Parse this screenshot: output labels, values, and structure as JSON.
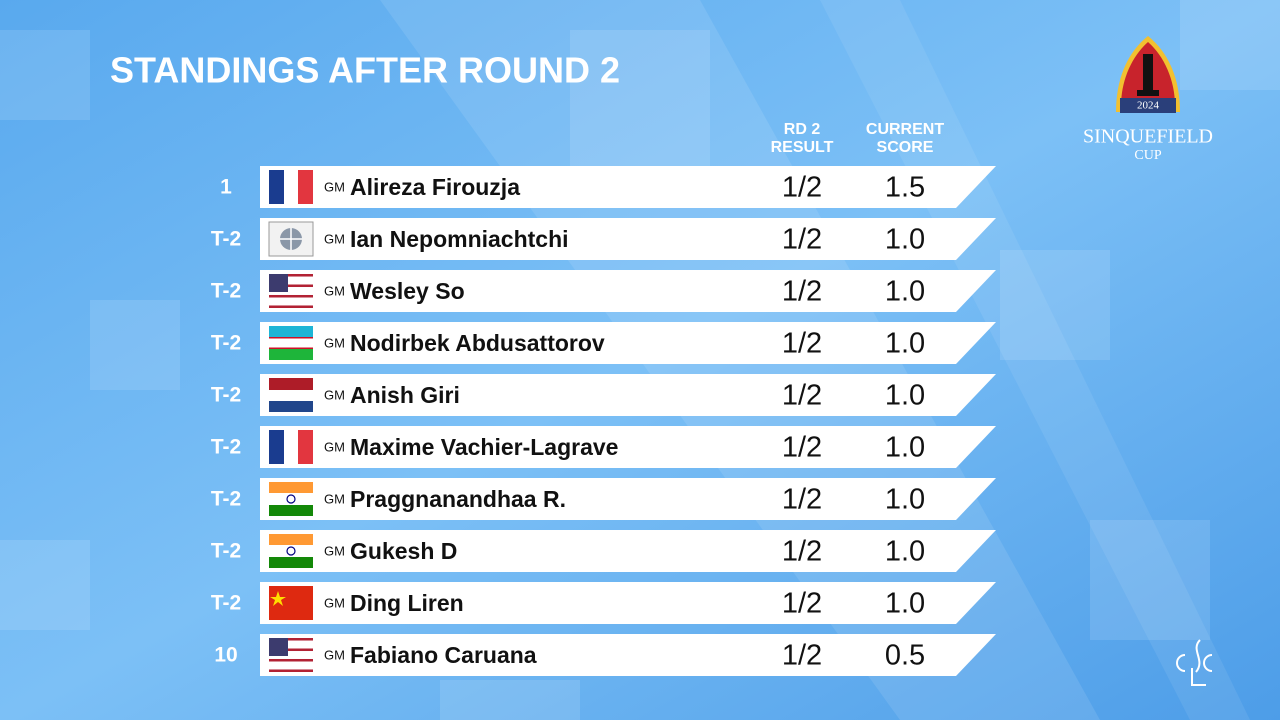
{
  "header": {
    "title": "STANDINGS AFTER ROUND 2"
  },
  "table": {
    "columns": [
      [
        "RD 2",
        "RESULT"
      ],
      [
        "CURRENT",
        "SCORE"
      ]
    ],
    "rows": [
      [
        "1",
        "GM",
        "Alireza Firouzja",
        "1/2",
        "1.5"
      ],
      [
        "T-2",
        "GM",
        "Ian Nepomniachtchi",
        "1/2",
        "1.0"
      ],
      [
        "T-2",
        "GM",
        "Wesley So",
        "1/2",
        "1.0"
      ],
      [
        "T-2",
        "GM",
        "Nodirbek Abdusattorov",
        "1/2",
        "1.0"
      ],
      [
        "T-2",
        "GM",
        "Anish Giri",
        "1/2",
        "1.0"
      ],
      [
        "T-2",
        "GM",
        "Maxime Vachier-Lagrave",
        "1/2",
        "1.0"
      ],
      [
        "T-2",
        "GM",
        "Praggnanandhaa R.",
        "1/2",
        "1.0"
      ],
      [
        "T-2",
        "GM",
        "Gukesh D",
        "1/2",
        "1.0"
      ],
      [
        "T-2",
        "GM",
        "Ding Liren",
        "1/2",
        "1.0"
      ],
      [
        "10",
        "GM",
        "Fabiano Caruana",
        "1/2",
        "0.5"
      ]
    ]
  },
  "logo": {
    "year": "2024",
    "name": "SINQUEFIELD",
    "sub": "CUP"
  }
}
